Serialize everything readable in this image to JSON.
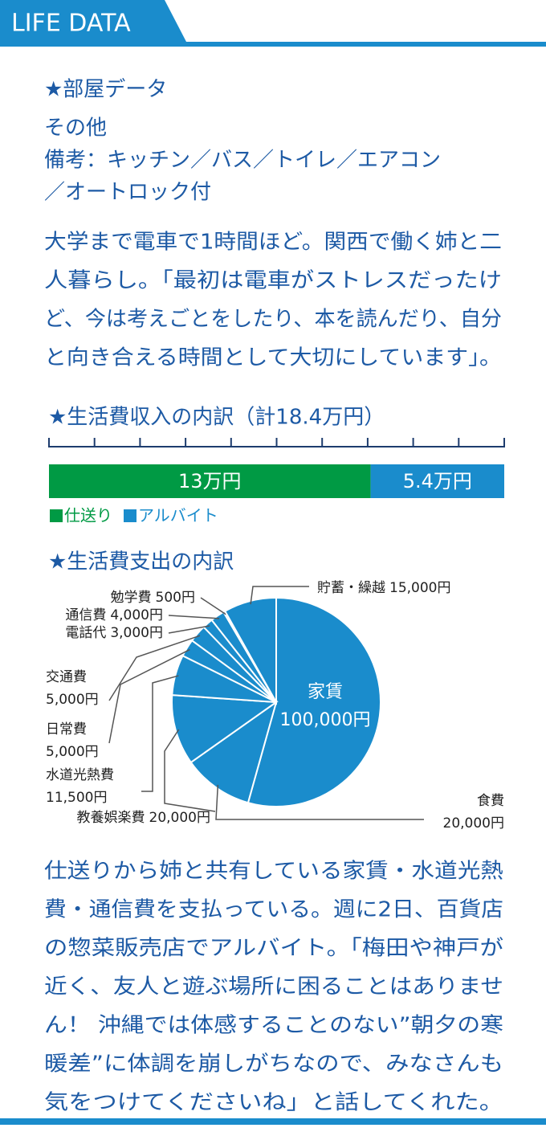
{
  "header": {
    "title": "LIFE DATA"
  },
  "room": {
    "title": "★部屋データ",
    "lines": [
      "その他",
      "備考：キッチン／バス／トイレ／エアコン",
      "／オートロック付"
    ]
  },
  "paragraph1": [
    "大学まで電車で1時間ほど。関西で働く姉と二",
    "人暮らし。「最初は電車がストレスだったけ",
    "ど、今は考えごとをしたり、本を読んだり、自分",
    "と向き合える時間として大切にしています」。"
  ],
  "chart_data": [
    {
      "type": "bar",
      "orientation": "horizontal",
      "stacked": true,
      "title": "★生活費収入の内訳（計18.4万円）",
      "categories": [
        null
      ],
      "xlim": [
        0,
        18.4
      ],
      "xticks": [
        0,
        1.84,
        3.68,
        5.52,
        7.36,
        9.2,
        11.04,
        12.88,
        14.72,
        16.56,
        18.4
      ],
      "series": [
        {
          "name": "仕送り",
          "color": "#009a44",
          "values": [
            13
          ],
          "value_labels": [
            "13万円"
          ]
        },
        {
          "name": "アルバイト",
          "color": "#1a8ccc",
          "values": [
            5.4
          ],
          "value_labels": [
            "5.4万円"
          ]
        }
      ]
    },
    {
      "type": "pie",
      "title": "★生活費支出の内訳",
      "color": "#1a8ccc",
      "categories": [
        "家賃",
        "食費",
        "教養娯楽費",
        "水道光熱費",
        "日常費",
        "交通費",
        "電話代",
        "通信費",
        "勉学費",
        "貯蓄・繰越"
      ],
      "values": [
        100000,
        20000,
        20000,
        11500,
        5000,
        5000,
        3000,
        4000,
        500,
        15000
      ],
      "value_labels": [
        "100,000円",
        "20,000円",
        "20,000円",
        "11,500円",
        "5,000円",
        "5,000円",
        "3,000円",
        "4,000円",
        "500円",
        "15,000円"
      ]
    }
  ],
  "paragraph2": [
    "仕送りから姉と共有している家賃・水道光熱",
    "費・通信費を支払っている。週に2日、百貨店",
    "の惣菜販売店でアルバイト。「梅田や神戸が",
    "近く、友人と遊ぶ場所に困ることはありませ",
    "ん！ 沖縄では体感することのない”朝夕の寒",
    "暖差”に体調を崩しがちなので、みなさんも",
    "気をつけてくださいね」と話してくれた。"
  ]
}
